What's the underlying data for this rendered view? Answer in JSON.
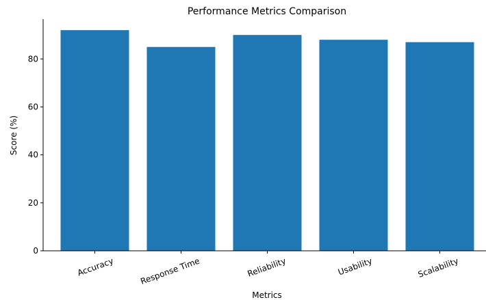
{
  "chart_data": {
    "type": "bar",
    "title": "Performance Metrics Comparison",
    "xlabel": "Metrics",
    "ylabel": "Score (%)",
    "categories": [
      "Accuracy",
      "Response Time",
      "Reliability",
      "Usability",
      "Scalability"
    ],
    "values": [
      92,
      85,
      90,
      88,
      87
    ],
    "ylim": [
      0,
      96.6
    ],
    "yticks": [
      "0",
      "20",
      "40",
      "60",
      "80"
    ],
    "grid": false,
    "bar_color": "#1f77b4"
  }
}
